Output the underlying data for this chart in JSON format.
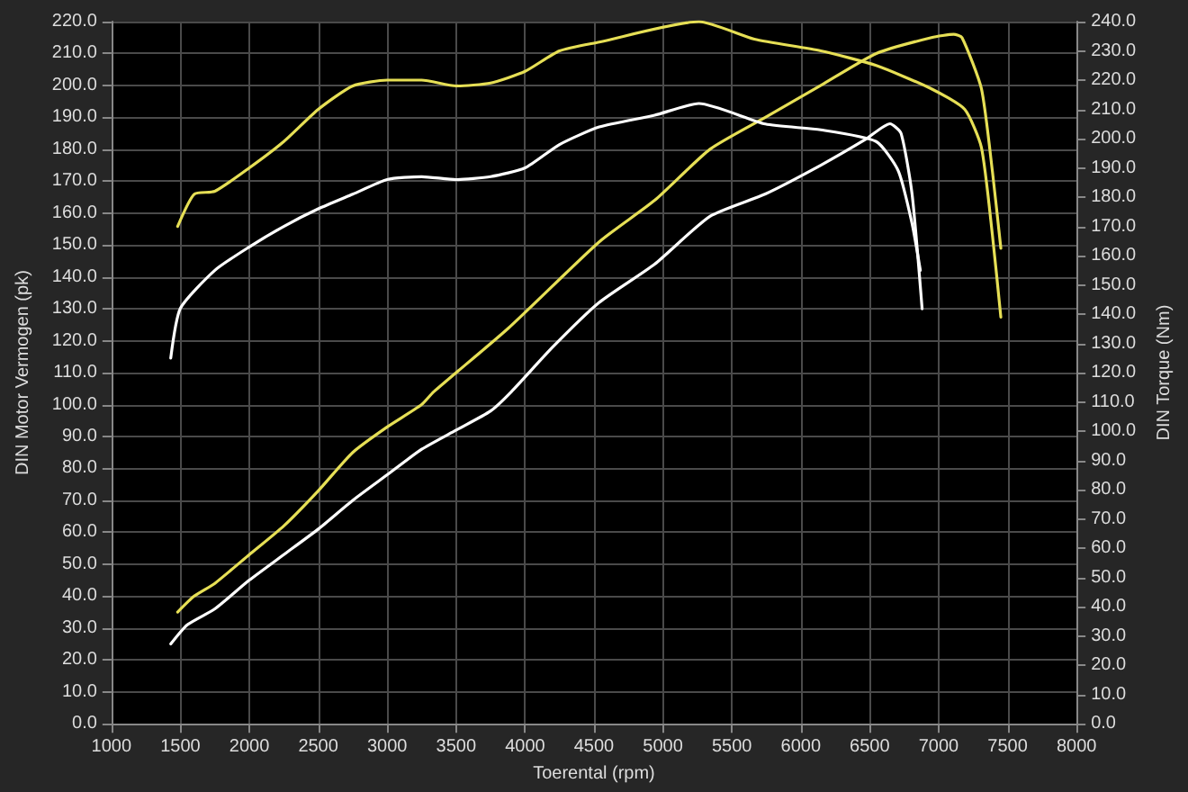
{
  "chart_data": {
    "type": "line",
    "xlabel": "Toerental (rpm)",
    "ylabel": "DIN Motor Vermogen (pk)",
    "y2label": "DIN Torque (Nm)",
    "xlim": [
      1000,
      8000
    ],
    "xticks": [
      1000,
      1500,
      2000,
      2500,
      3000,
      3500,
      4000,
      4500,
      5000,
      5500,
      6000,
      6500,
      7000,
      7500,
      8000
    ],
    "ylim": [
      0,
      220
    ],
    "yticks": [
      {
        "value": 0,
        "label": "0.0"
      },
      {
        "value": 10,
        "label": "10.0"
      },
      {
        "value": 20,
        "label": "20.0"
      },
      {
        "value": 30,
        "label": "30.0"
      },
      {
        "value": 40,
        "label": "40.0"
      },
      {
        "value": 50,
        "label": "50.0"
      },
      {
        "value": 60,
        "label": "60.0"
      },
      {
        "value": 70,
        "label": "70.0"
      },
      {
        "value": 80,
        "label": "80.0"
      },
      {
        "value": 90,
        "label": "90.0"
      },
      {
        "value": 100,
        "label": "100.0"
      },
      {
        "value": 110,
        "label": "110.0"
      },
      {
        "value": 120,
        "label": "120.0"
      },
      {
        "value": 130,
        "label": "130.0"
      },
      {
        "value": 140,
        "label": "140.0"
      },
      {
        "value": 150,
        "label": "150.0"
      },
      {
        "value": 160,
        "label": "160.0"
      },
      {
        "value": 170,
        "label": "170.0"
      },
      {
        "value": 180,
        "label": "180.0"
      },
      {
        "value": 190,
        "label": "190.0"
      },
      {
        "value": 200,
        "label": "200.0"
      },
      {
        "value": 210,
        "label": "210.0"
      },
      {
        "value": 220,
        "label": "220.0"
      }
    ],
    "y2lim": [
      0,
      240
    ],
    "y2ticks": [
      {
        "value": 0,
        "label": "0.0"
      },
      {
        "value": 10,
        "label": "10.0"
      },
      {
        "value": 20,
        "label": "20.0"
      },
      {
        "value": 30,
        "label": "30.0"
      },
      {
        "value": 40,
        "label": "40.0"
      },
      {
        "value": 50,
        "label": "50.0"
      },
      {
        "value": 60,
        "label": "60.0"
      },
      {
        "value": 70,
        "label": "70.0"
      },
      {
        "value": 80,
        "label": "80.0"
      },
      {
        "value": 90,
        "label": "90.0"
      },
      {
        "value": 100,
        "label": "100.0"
      },
      {
        "value": 110,
        "label": "110.0"
      },
      {
        "value": 120,
        "label": "120.0"
      },
      {
        "value": 130,
        "label": "130.0"
      },
      {
        "value": 140,
        "label": "140.0"
      },
      {
        "value": 150,
        "label": "150.0"
      },
      {
        "value": 160,
        "label": "160.0"
      },
      {
        "value": 170,
        "label": "170.0"
      },
      {
        "value": 180,
        "label": "180.0"
      },
      {
        "value": 190,
        "label": "190.0"
      },
      {
        "value": 200,
        "label": "200.0"
      },
      {
        "value": 210,
        "label": "210.0"
      },
      {
        "value": 220,
        "label": "220.0"
      },
      {
        "value": 230,
        "label": "230.0"
      },
      {
        "value": 240,
        "label": "240.0"
      }
    ],
    "grid": true,
    "marker": "none",
    "line_style": "solid",
    "series": [
      {
        "color": "#ffffff",
        "x": [
          1430,
          1550,
          1750,
          2000,
          2250,
          2500,
          2750,
          3000,
          3250,
          3500,
          3750,
          3900,
          4200,
          4538,
          4940,
          5341,
          5743,
          6145,
          6466,
          6647,
          6727,
          6807,
          6880
        ],
        "values": [
          25,
          31,
          36,
          45,
          53,
          61,
          70,
          78,
          86,
          92,
          98,
          104,
          118,
          132,
          144,
          159,
          166,
          175,
          183,
          188,
          185,
          166,
          130
        ]
      },
      {
        "color": "#e6df55",
        "x": [
          1480,
          1600,
          1750,
          2000,
          2250,
          2500,
          2750,
          3000,
          3250,
          3337,
          3880,
          4538,
          4940,
          5341,
          5743,
          6145,
          6547,
          6948,
          7109,
          7169,
          7310,
          7390,
          7451
        ],
        "values": [
          35,
          40,
          44,
          53,
          62,
          73,
          85,
          93,
          100,
          104,
          124,
          151,
          164,
          180,
          190,
          200,
          210,
          215,
          216,
          215,
          199,
          173,
          149
        ]
      },
      {
        "color": "#ffffff",
        "axis": "y2",
        "x": [
          1430,
          1500,
          1750,
          2000,
          2250,
          2500,
          2750,
          3000,
          3250,
          3500,
          3750,
          4000,
          4250,
          4538,
          4940,
          5261,
          5743,
          6145,
          6547,
          6707,
          6807,
          6867
        ],
        "values": [
          125,
          142,
          155,
          163,
          170,
          176,
          181,
          186,
          187,
          186,
          187,
          190,
          198,
          204,
          208,
          212,
          205,
          203,
          199,
          189,
          171,
          155
        ]
      },
      {
        "color": "#e6df55",
        "axis": "y2",
        "x": [
          1480,
          1600,
          1750,
          2000,
          2250,
          2500,
          2750,
          3000,
          3250,
          3500,
          3750,
          4000,
          4250,
          4538,
          5261,
          5663,
          6145,
          6547,
          6948,
          7189,
          7310,
          7390,
          7451
        ],
        "values": [
          170,
          181,
          182,
          190,
          199,
          210,
          218,
          220,
          220,
          218,
          219,
          223,
          230,
          233,
          240,
          234,
          230,
          225,
          217,
          210,
          197,
          167,
          139
        ]
      }
    ]
  }
}
